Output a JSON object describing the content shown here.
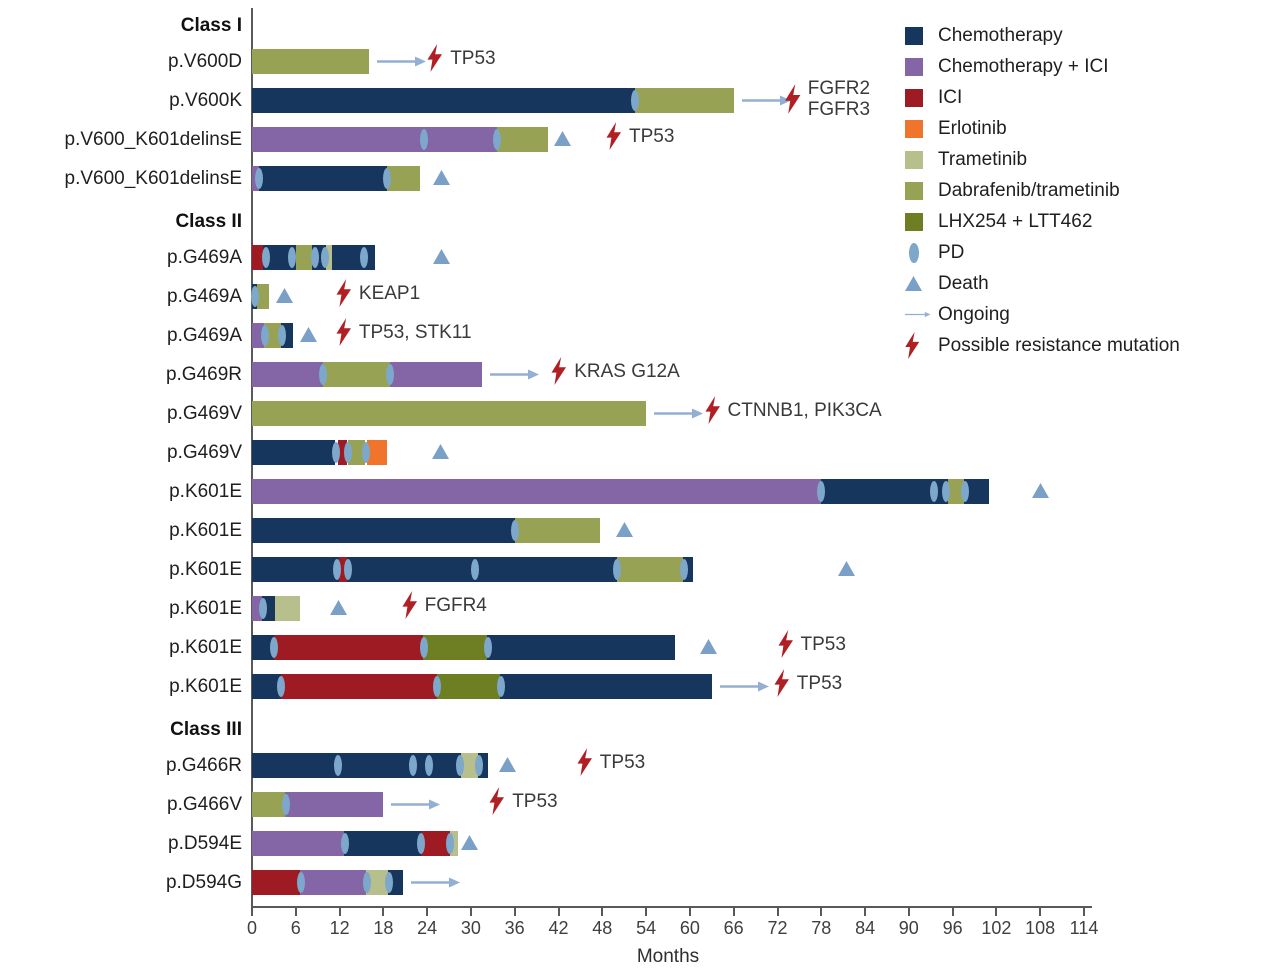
{
  "chart_data": {
    "type": "bar",
    "subtype": "swimmer-plot",
    "xlabel": "Months",
    "axis": {
      "min": 0,
      "max": 114,
      "step": 6
    },
    "treatments": {
      "chemo": {
        "label": "Chemotherapy",
        "color": "#17365d"
      },
      "chemo_ici": {
        "label": "Chemotherapy + ICI",
        "color": "#8465a5"
      },
      "ici": {
        "label": "ICI",
        "color": "#9e1b23"
      },
      "erlotinib": {
        "label": "Erlotinib",
        "color": "#f0742c"
      },
      "tram": {
        "label": "Trametinib",
        "color": "#b7bf8d"
      },
      "dab_tram": {
        "label": "Dabrafenib/trametinib",
        "color": "#97a254"
      },
      "lhx_ltt": {
        "label": "LHX254 + LTT462",
        "color": "#6e7e23"
      }
    },
    "marker_colors": {
      "pd": "#7da7cb",
      "death": "#7ba0c8",
      "ongoing": "#93afd3",
      "resistance_bolt": "#b01f24"
    },
    "legend": [
      {
        "marker": "square",
        "color": "#17365d",
        "label": "Chemotherapy"
      },
      {
        "marker": "square",
        "color": "#8465a5",
        "label": "Chemotherapy + ICI"
      },
      {
        "marker": "square",
        "color": "#9e1b23",
        "label": "ICI"
      },
      {
        "marker": "square",
        "color": "#f0742c",
        "label": "Erlotinib"
      },
      {
        "marker": "square",
        "color": "#b7bf8d",
        "label": "Trametinib"
      },
      {
        "marker": "square",
        "color": "#97a254",
        "label": "Dabrafenib/trametinib"
      },
      {
        "marker": "square",
        "color": "#6e7e23",
        "label": "LHX254 + LTT462"
      },
      {
        "marker": "ellipse",
        "color": "#7da7cb",
        "label": "PD"
      },
      {
        "marker": "triangle",
        "color": "#7ba0c8",
        "label": "Death"
      },
      {
        "marker": "arrow",
        "color": "#93afd3",
        "label": "Ongoing"
      },
      {
        "marker": "bolt",
        "color": "#b01f24",
        "label": "Possible resistance mutation"
      }
    ],
    "rows": [
      {
        "group": "Class I"
      },
      {
        "label": "p.V600D",
        "segments": [
          [
            "dab_tram",
            0,
            16
          ]
        ],
        "pd": [],
        "ongoing": true,
        "bolt": {
          "at": 24,
          "lines": [
            "TP53"
          ]
        }
      },
      {
        "label": "p.V600K",
        "segments": [
          [
            "chemo",
            0,
            52.5
          ],
          [
            "dab_tram",
            52.5,
            66
          ]
        ],
        "pd": [
          52.5
        ],
        "ongoing": true,
        "bolt": {
          "at": 73,
          "lines": [
            "FGFR2",
            "FGFR3"
          ]
        }
      },
      {
        "label": "p.V600_K601delinsE",
        "segments": [
          [
            "chemo_ici",
            0,
            33.5
          ],
          [
            "dab_tram",
            33.5,
            40.5
          ]
        ],
        "pd": [
          23.5,
          33.5
        ],
        "death": 42.5,
        "bolt": {
          "at": 48.5,
          "lines": [
            "TP53"
          ]
        }
      },
      {
        "label": "p.V600_K601delinsE",
        "segments": [
          [
            "chemo_ici",
            0,
            1
          ],
          [
            "chemo",
            1,
            18.5
          ],
          [
            "dab_tram",
            18.5,
            23
          ]
        ],
        "pd": [
          1,
          18.5
        ],
        "death": 26
      },
      {
        "group": "Class II"
      },
      {
        "label": "p.G469A",
        "segments": [
          [
            "ici",
            0,
            1.5
          ],
          [
            "chemo",
            1.5,
            6
          ],
          [
            "dab_tram",
            6,
            8.2
          ],
          [
            "chemo",
            8.2,
            10.2
          ],
          [
            "tram",
            10.2,
            11
          ],
          [
            "chemo",
            11,
            16.8
          ]
        ],
        "pd": [
          1.9,
          5.5,
          8.6,
          10,
          15.3
        ],
        "death": 26
      },
      {
        "label": "p.G469A",
        "segments": [
          [
            "chemo",
            0,
            0.7
          ],
          [
            "dab_tram",
            0.7,
            2.3
          ]
        ],
        "pd": [
          0.4
        ],
        "death": 4.5,
        "bolt": {
          "at": 11.5,
          "lines": [
            "KEAP1"
          ]
        }
      },
      {
        "label": "p.G469A",
        "segments": [
          [
            "chemo_ici",
            0,
            1.7
          ],
          [
            "dab_tram",
            1.7,
            4
          ],
          [
            "chemo",
            4,
            5.6
          ]
        ],
        "pd": [
          1.8,
          4.1
        ],
        "death": 7.8,
        "bolt": {
          "at": 11.5,
          "lines": [
            "TP53, STK11"
          ]
        }
      },
      {
        "label": "p.G469R",
        "segments": [
          [
            "chemo_ici",
            0,
            9.7
          ],
          [
            "dab_tram",
            9.7,
            18.9
          ],
          [
            "chemo_ici",
            18.9,
            31.5
          ]
        ],
        "pd": [
          9.7,
          18.9
        ],
        "ongoing": true,
        "bolt": {
          "at": 41,
          "lines": [
            "KRAS G12A"
          ]
        }
      },
      {
        "label": "p.G469V",
        "segments": [
          [
            "dab_tram",
            0,
            54
          ]
        ],
        "pd": [],
        "ongoing": true,
        "bolt": {
          "at": 62,
          "lines": [
            "CTNNB1, PIK3CA"
          ]
        }
      },
      {
        "label": "p.G469V",
        "segments": [
          [
            "chemo",
            0,
            11.4
          ],
          [
            "ici",
            11.8,
            13
          ],
          [
            "dab_tram",
            13.2,
            15.5
          ],
          [
            "erlotinib",
            15.7,
            18.5
          ]
        ],
        "pd": [
          11.5,
          13.1,
          15.6
        ],
        "death": 25.8
      },
      {
        "label": "p.K601E",
        "segments": [
          [
            "chemo_ici",
            0,
            78
          ],
          [
            "chemo",
            78,
            95.3
          ],
          [
            "dab_tram",
            95.3,
            97.5
          ],
          [
            "chemo",
            97.5,
            101
          ]
        ],
        "pd": [
          78,
          93.5,
          95.1,
          97.7
        ],
        "death": 108
      },
      {
        "label": "p.K601E",
        "segments": [
          [
            "chemo",
            0,
            36
          ],
          [
            "dab_tram",
            36,
            47.7
          ]
        ],
        "pd": [
          36
        ],
        "death": 51
      },
      {
        "label": "p.K601E",
        "segments": [
          [
            "chemo",
            0,
            11.9
          ],
          [
            "ici",
            11.9,
            13
          ],
          [
            "chemo",
            13,
            50
          ],
          [
            "dab_tram",
            50,
            59
          ],
          [
            "chemo",
            59,
            60.5
          ]
        ],
        "pd": [
          11.7,
          13.2,
          30.5,
          50,
          59.2
        ],
        "death": 81.5
      },
      {
        "label": "p.K601E",
        "segments": [
          [
            "chemo_ici",
            0,
            1.4
          ],
          [
            "chemo",
            1.4,
            3.2
          ],
          [
            "tram",
            3.2,
            6.6
          ]
        ],
        "pd": [
          1.5
        ],
        "death": 11.8,
        "bolt": {
          "at": 20.5,
          "lines": [
            "FGFR4"
          ]
        }
      },
      {
        "label": "p.K601E",
        "segments": [
          [
            "chemo",
            0,
            3
          ],
          [
            "ici",
            3,
            23.4
          ],
          [
            "lhx_ltt",
            23.4,
            32.2
          ],
          [
            "chemo",
            32.2,
            58
          ]
        ],
        "pd": [
          3,
          23.5,
          32.3
        ],
        "death": 62.5,
        "bolt": {
          "at": 72,
          "lines": [
            "TP53"
          ]
        }
      },
      {
        "label": "p.K601E",
        "segments": [
          [
            "chemo",
            0,
            4
          ],
          [
            "ici",
            4,
            25.3
          ],
          [
            "lhx_ltt",
            25.3,
            34
          ],
          [
            "chemo",
            34,
            63
          ]
        ],
        "pd": [
          4,
          25.4,
          34.1
        ],
        "ongoing": true,
        "bolt": {
          "at": 71.5,
          "lines": [
            "TP53"
          ]
        }
      },
      {
        "group": "Class III"
      },
      {
        "label": "p.G466R",
        "segments": [
          [
            "chemo",
            0,
            28.6
          ],
          [
            "tram",
            28.6,
            31
          ],
          [
            "chemo",
            31,
            32.3
          ]
        ],
        "pd": [
          11.8,
          22,
          24.2,
          28.5,
          31.1
        ],
        "death": 35,
        "bolt": {
          "at": 44.5,
          "lines": [
            "TP53"
          ]
        }
      },
      {
        "label": "p.G466V",
        "segments": [
          [
            "dab_tram",
            0,
            4.5
          ],
          [
            "chemo_ici",
            4.5,
            18
          ]
        ],
        "pd": [
          4.6
        ],
        "ongoing": true,
        "bolt": {
          "at": 32.5,
          "lines": [
            "TP53"
          ]
        }
      },
      {
        "label": "p.D594E",
        "segments": [
          [
            "chemo_ici",
            0,
            12.6
          ],
          [
            "chemo",
            12.6,
            23.1
          ],
          [
            "ici",
            23.1,
            27.1
          ],
          [
            "tram",
            27.1,
            28.2
          ]
        ],
        "pd": [
          12.7,
          23.2,
          27.1
        ],
        "death": 29.8
      },
      {
        "label": "p.D594G",
        "segments": [
          [
            "ici",
            0,
            6.6
          ],
          [
            "chemo_ici",
            6.6,
            15.6
          ],
          [
            "tram",
            15.6,
            18.6
          ],
          [
            "chemo",
            18.6,
            20.7
          ]
        ],
        "pd": [
          6.7,
          15.7,
          18.7
        ],
        "ongoing": true
      }
    ]
  }
}
